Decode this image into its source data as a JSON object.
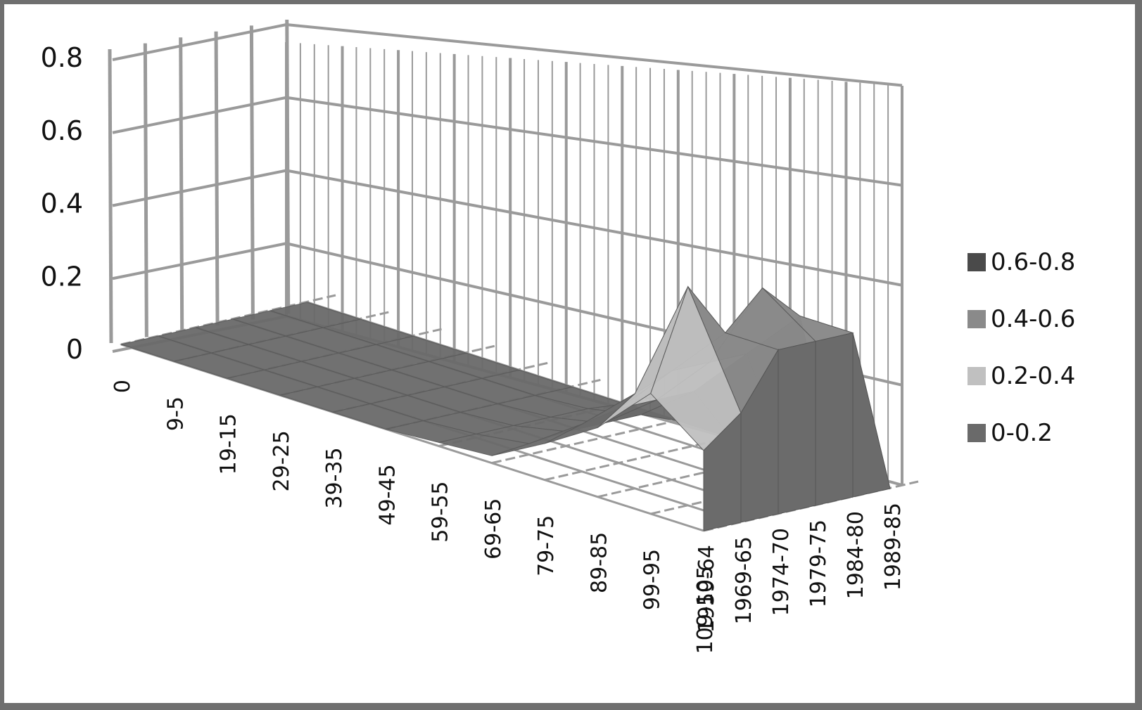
{
  "chart_data": {
    "type": "surface",
    "title": "",
    "xlabel": "",
    "ylabel": "",
    "zlim": [
      0,
      0.8
    ],
    "z_ticks": [
      "0.8",
      "0.6",
      "0.4",
      "0.2",
      "0"
    ],
    "x_categories": [
      "0",
      "9-5",
      "19-15",
      "29-25",
      "39-35",
      "49-45",
      "59-55",
      "69-65",
      "79-75",
      "89-85",
      "99-95",
      "109-105"
    ],
    "series": [
      {
        "name": "1959-64",
        "values": [
          0,
          0,
          0,
          0,
          0,
          0,
          0.01,
          0.02,
          0.1,
          0.19,
          0.33,
          0.22
        ]
      },
      {
        "name": "1969-65",
        "values": [
          0,
          0,
          0,
          0,
          0,
          0,
          0.01,
          0.03,
          0.13,
          0.26,
          0.6,
          0.3
        ]
      },
      {
        "name": "1974-70",
        "values": [
          0,
          0,
          0,
          0,
          0,
          0,
          0.01,
          0.04,
          0.15,
          0.3,
          0.45,
          0.45
        ]
      },
      {
        "name": "1979-75",
        "values": [
          0,
          0,
          0,
          0,
          0,
          0,
          0.01,
          0.04,
          0.15,
          0.3,
          0.55,
          0.45
        ]
      },
      {
        "name": "1984-80",
        "values": [
          0,
          0,
          0,
          0,
          0,
          0,
          0.01,
          0.04,
          0.15,
          0.3,
          0.45,
          0.45
        ]
      },
      {
        "name": "1989-85",
        "values": [
          0,
          0,
          0,
          0,
          0,
          0,
          0,
          0,
          0,
          0,
          0,
          0
        ]
      }
    ],
    "legend": {
      "position": "right",
      "items": [
        {
          "label": "0.6-0.8",
          "color": "#4a4a4a"
        },
        {
          "label": "0.4-0.6",
          "color": "#8a8a8a"
        },
        {
          "label": "0.2-0.4",
          "color": "#c0c0c0"
        },
        {
          "label": "0-0.2",
          "color": "#6a6a6a"
        }
      ]
    },
    "grid": true,
    "grid_color": "#9a9a9a"
  }
}
